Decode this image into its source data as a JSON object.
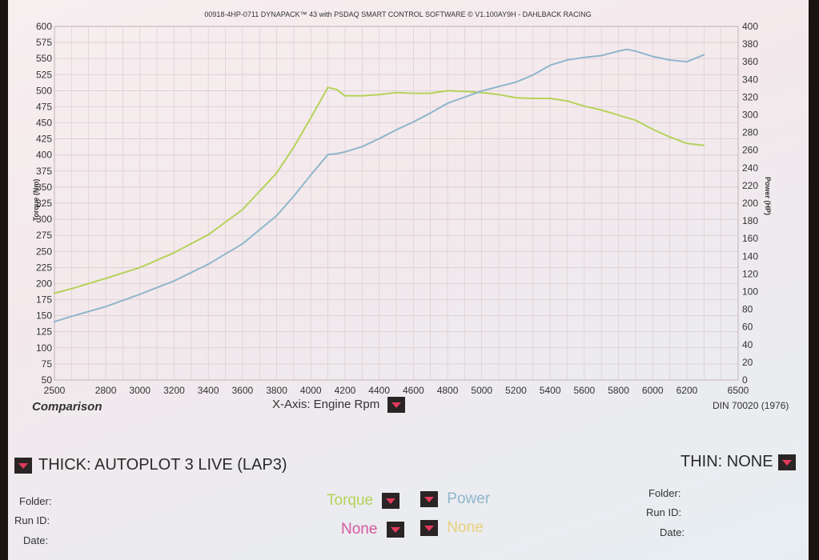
{
  "header": "00918-4HP-0711 DYNAPACK™ 43 with PSDAQ SMART CONTROL SOFTWARE © V1.100AY9H - DAHLBACK RACING",
  "comparison_label": "Comparison",
  "x_axis_selector": "X-Axis: Engine Rpm",
  "standard": "DIN 70020 (1976)",
  "thick_label": "THICK: AUTOPLOT 3 LIVE (LAP3)",
  "thin_label": "THIN: NONE",
  "left_meta": {
    "folder": "Folder:",
    "run_id": "Run ID:",
    "date": "Date:"
  },
  "right_meta": {
    "folder": "Folder:",
    "run_id": "Run ID:",
    "date": "Date:"
  },
  "channels": {
    "torque": "Torque",
    "power": "Power",
    "none1": "None",
    "none2": "None"
  },
  "colors": {
    "torque": "#b5d25a",
    "power": "#8fb6cc",
    "none1": "#d45aa0",
    "none2": "#e8d07a",
    "dropdown": "#e23a5b"
  },
  "chart_data": {
    "type": "line",
    "xlabel": "",
    "ylabel": "Torque (Nm)",
    "y2label": "Power (HP)",
    "xlim": [
      2500,
      6500
    ],
    "ylim": [
      50,
      600
    ],
    "y2lim": [
      0,
      400
    ],
    "x_ticks": [
      2500,
      2800,
      3000,
      3200,
      3400,
      3600,
      3800,
      4000,
      4200,
      4400,
      4600,
      4800,
      5000,
      5200,
      5400,
      5600,
      5800,
      6000,
      6200,
      6500
    ],
    "y_ticks": [
      50,
      75,
      100,
      125,
      150,
      175,
      200,
      225,
      250,
      275,
      300,
      325,
      350,
      375,
      400,
      425,
      450,
      475,
      500,
      525,
      550,
      575,
      600
    ],
    "y2_ticks": [
      0,
      20,
      40,
      60,
      80,
      100,
      120,
      140,
      160,
      180,
      200,
      220,
      240,
      260,
      280,
      300,
      320,
      340,
      360,
      380,
      400
    ],
    "grid": true,
    "series": [
      {
        "name": "Torque",
        "axis": "left",
        "x": [
          2500,
          2600,
          2800,
          3000,
          3200,
          3400,
          3600,
          3800,
          3900,
          4000,
          4100,
          4150,
          4200,
          4300,
          4400,
          4500,
          4600,
          4700,
          4800,
          4900,
          5000,
          5100,
          5200,
          5300,
          5400,
          5500,
          5600,
          5700,
          5800,
          5900,
          6000,
          6100,
          6200,
          6300
        ],
        "y": [
          185,
          192,
          208,
          225,
          248,
          276,
          315,
          372,
          412,
          458,
          505,
          502,
          492,
          492,
          494,
          497,
          496,
          496,
          500,
          499,
          497,
          494,
          489,
          488,
          488,
          484,
          476,
          470,
          462,
          454,
          440,
          428,
          418,
          415
        ]
      },
      {
        "name": "Power",
        "axis": "right",
        "x": [
          2500,
          2600,
          2800,
          3000,
          3200,
          3400,
          3600,
          3800,
          3900,
          4000,
          4100,
          4150,
          4200,
          4300,
          4400,
          4500,
          4600,
          4700,
          4800,
          4900,
          5000,
          5100,
          5200,
          5300,
          5400,
          5500,
          5600,
          5700,
          5800,
          5850,
          5900,
          6000,
          6100,
          6200,
          6300
        ],
        "y": [
          66,
          72,
          83,
          97,
          112,
          131,
          154,
          186,
          208,
          232,
          255,
          256,
          258,
          264,
          273,
          283,
          292,
          302,
          313,
          320,
          327,
          332,
          337,
          345,
          356,
          362,
          365,
          367,
          372,
          374,
          372,
          366,
          362,
          360,
          368
        ]
      }
    ]
  }
}
